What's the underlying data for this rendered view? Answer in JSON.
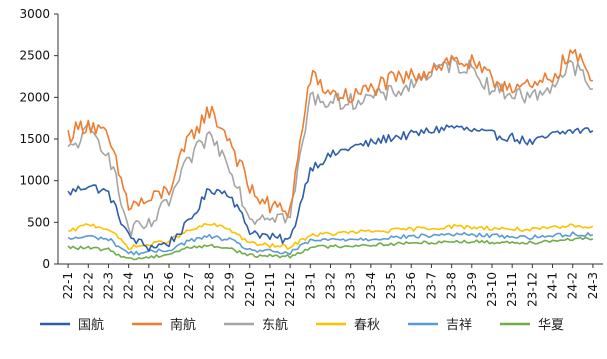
{
  "chart_data": {
    "type": "line",
    "title": "",
    "xlabel": "",
    "ylabel": "",
    "ylim": [
      0,
      3000
    ],
    "yticks": [
      0,
      500,
      1000,
      1500,
      2000,
      2500,
      3000
    ],
    "grid": false,
    "legend_position": "bottom",
    "x_labels": [
      "22-1",
      "22-2",
      "22-3",
      "22-4",
      "22-5",
      "22-6",
      "22-7",
      "22-8",
      "22-9",
      "22-10",
      "22-11",
      "22-12",
      "23-1",
      "23-2",
      "23-3",
      "23-4",
      "23-5",
      "23-6",
      "23-7",
      "23-8",
      "23-9",
      "23-10",
      "23-11",
      "23-12",
      "24-1",
      "24-2",
      "24-3"
    ],
    "series": [
      {
        "name": "国航",
        "color": "#2E5EAA",
        "noise": 55,
        "values": [
          850,
          950,
          850,
          330,
          200,
          250,
          500,
          900,
          850,
          400,
          320,
          280,
          1150,
          1300,
          1400,
          1450,
          1520,
          1550,
          1600,
          1650,
          1600,
          1550,
          1520,
          1450,
          1550,
          1600,
          1600
        ]
      },
      {
        "name": "南航",
        "color": "#ED7D31",
        "noise": 110,
        "values": [
          1550,
          1700,
          1500,
          700,
          750,
          900,
          1500,
          1850,
          1500,
          900,
          680,
          650,
          2250,
          2050,
          2000,
          2100,
          2200,
          2250,
          2350,
          2450,
          2400,
          2200,
          2150,
          2100,
          2250,
          2550,
          2200
        ]
      },
      {
        "name": "东航",
        "color": "#A5A5A5",
        "noise": 100,
        "values": [
          1350,
          1600,
          1350,
          400,
          450,
          750,
          1250,
          1550,
          1200,
          550,
          600,
          550,
          2000,
          1950,
          1950,
          2000,
          2050,
          2150,
          2300,
          2400,
          2350,
          2100,
          2050,
          2000,
          2150,
          2400,
          2100
        ]
      },
      {
        "name": "春秋",
        "color": "#FFC000",
        "noise": 25,
        "values": [
          380,
          480,
          420,
          200,
          230,
          280,
          400,
          480,
          420,
          250,
          220,
          200,
          350,
          360,
          380,
          390,
          400,
          420,
          430,
          450,
          440,
          430,
          420,
          410,
          430,
          460,
          450
        ]
      },
      {
        "name": "吉祥",
        "color": "#5B9BD5",
        "noise": 25,
        "values": [
          300,
          330,
          300,
          130,
          140,
          170,
          280,
          330,
          290,
          170,
          150,
          130,
          280,
          290,
          300,
          300,
          320,
          330,
          340,
          360,
          350,
          340,
          330,
          320,
          340,
          360,
          350
        ]
      },
      {
        "name": "华夏",
        "color": "#70AD47",
        "noise": 20,
        "values": [
          200,
          190,
          170,
          60,
          80,
          120,
          200,
          220,
          190,
          100,
          100,
          90,
          200,
          210,
          220,
          230,
          240,
          250,
          260,
          270,
          270,
          260,
          260,
          260,
          280,
          300,
          300
        ]
      }
    ]
  }
}
